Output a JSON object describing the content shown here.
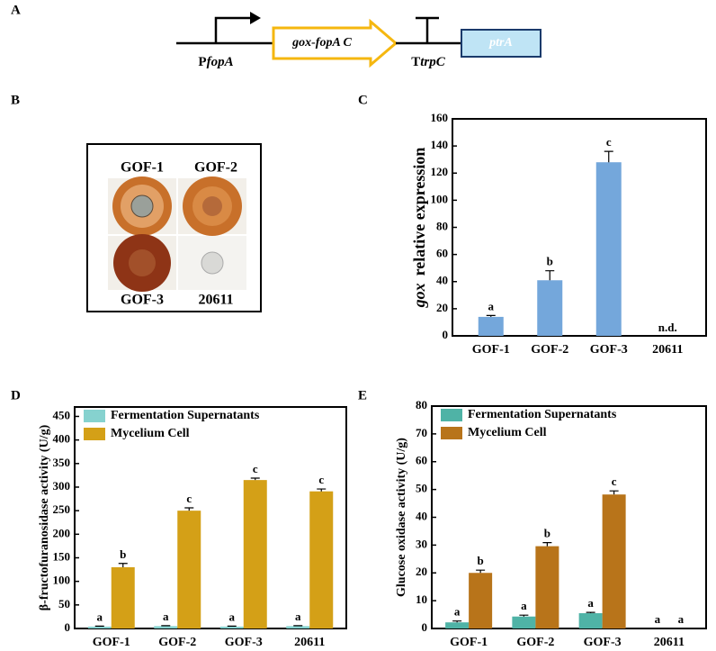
{
  "panel_letters": [
    "A",
    "B",
    "C",
    "D",
    "E"
  ],
  "diagram": {
    "promoter": [
      "P",
      "fopA"
    ],
    "gene": "gox-fopA C",
    "terminator": [
      "T",
      "trpC"
    ],
    "marker": "ptrA"
  },
  "photo": {
    "labels": [
      "GOF-1",
      "GOF-2",
      "GOF-3",
      "20611"
    ]
  },
  "chart_data": [
    {
      "type": "bar",
      "ylabel": [
        "gox",
        "relative expression"
      ],
      "categories": [
        "GOF-1",
        "GOF-2",
        "GOF-3",
        "20611"
      ],
      "values": [
        14,
        41,
        128,
        null
      ],
      "errors": [
        1,
        7,
        8,
        null
      ],
      "annotations": [
        "a",
        "b",
        "c",
        "n.d."
      ],
      "color": "#74a7db",
      "ylim": [
        0,
        160
      ],
      "yticks": [
        0,
        20,
        40,
        60,
        80,
        100,
        120,
        140,
        160
      ]
    },
    {
      "type": "bar",
      "ylabel": "β-fructofuranosidase activity  (U/g)",
      "categories": [
        "GOF-1",
        "GOF-2",
        "GOF-3",
        "20611"
      ],
      "series": [
        {
          "name": "Fermentation Supernatants",
          "color": "#86d2cf",
          "values": [
            4,
            5,
            4,
            5
          ],
          "errors": [
            1,
            1,
            1,
            1
          ],
          "annotations": [
            "a",
            "a",
            "a",
            "a"
          ]
        },
        {
          "name": "Mycelium Cell",
          "color": "#d4a017",
          "values": [
            130,
            250,
            315,
            291
          ],
          "errors": [
            8,
            6,
            4,
            5
          ],
          "annotations": [
            "b",
            "c",
            "c",
            "c"
          ]
        }
      ],
      "ylim": [
        0,
        470
      ],
      "yticks": [
        0,
        50,
        100,
        150,
        200,
        250,
        300,
        350,
        400,
        450
      ]
    },
    {
      "type": "bar",
      "ylabel": "Glucose oxidase activity  (U/g)",
      "categories": [
        "GOF-1",
        "GOF-2",
        "GOF-3",
        "20611"
      ],
      "series": [
        {
          "name": "Fermentation Supernatants",
          "color": "#4fb3a6",
          "values": [
            2.2,
            4.3,
            5.5,
            0
          ],
          "errors": [
            0.5,
            0.5,
            0.3,
            0
          ],
          "annotations": [
            "a",
            "a",
            "a",
            "a"
          ]
        },
        {
          "name": "Mycelium Cell",
          "color": "#b8741a",
          "values": [
            20,
            29.6,
            48.2,
            0
          ],
          "errors": [
            1,
            1.3,
            1.3,
            0
          ],
          "annotations": [
            "b",
            "b",
            "c",
            "a"
          ]
        }
      ],
      "ylim": [
        0,
        80
      ],
      "yticks": [
        0,
        10,
        20,
        30,
        40,
        50,
        60,
        70,
        80
      ]
    }
  ]
}
